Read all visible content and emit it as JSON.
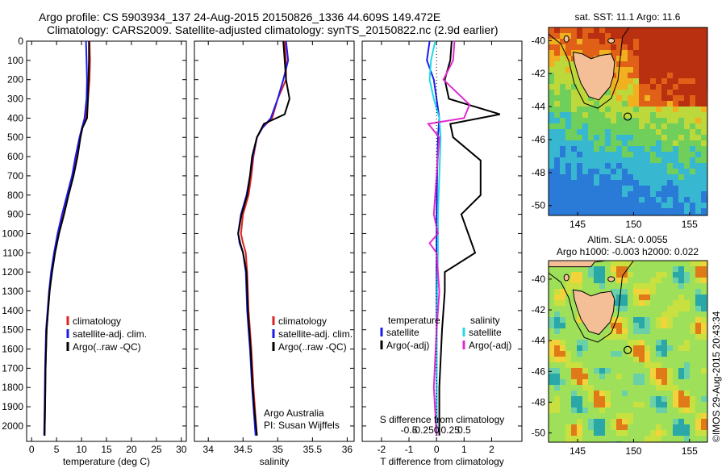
{
  "header": {
    "line1": "Argo profile: CS 5903934_137 24-Aug-2015 20150826_1336 44.609S 149.472E",
    "line2": "Climatology: CARS2009. Satellite-adjusted climatology: synTS_20150822.nc (2.9d earlier)"
  },
  "colors": {
    "climatology": "#dd2222",
    "satellite_adj": "#1a1aee",
    "argo": "#000000",
    "cyan": "#22d8e8",
    "magenta": "#e02ad0"
  },
  "chart_data": [
    {
      "type": "line",
      "name": "temperature",
      "xlabel": "temperature (deg C)",
      "xlim": [
        -1,
        31
      ],
      "xticks": [
        0,
        5,
        10,
        15,
        20,
        25,
        30
      ],
      "ylim": [
        0,
        2080
      ],
      "yticks": [
        0,
        100,
        200,
        300,
        400,
        500,
        600,
        700,
        800,
        900,
        1000,
        1100,
        1200,
        1300,
        1400,
        1500,
        1600,
        1700,
        1800,
        1900,
        2000
      ],
      "legend": [
        "climatology",
        "satellite-adj. clim.",
        "Argo(..raw -QC)"
      ],
      "series": [
        {
          "name": "climatology",
          "color": "#dd2222",
          "x": [
            11.6,
            11.7,
            11.6,
            11.3,
            10.8,
            10.1,
            9.6,
            8.9,
            8.2,
            7.2,
            6.2,
            5.3,
            4.6,
            4.0,
            3.6,
            3.3,
            3.0,
            2.8,
            2.7,
            2.6
          ],
          "y": [
            0,
            100,
            200,
            300,
            400,
            450,
            500,
            600,
            700,
            800,
            900,
            1000,
            1100,
            1200,
            1300,
            1400,
            1500,
            1700,
            1900,
            2050
          ]
        },
        {
          "name": "satellite-adj. clim.",
          "color": "#1a1aee",
          "x": [
            10.9,
            11.0,
            11.1,
            11.0,
            10.6,
            10.1,
            9.6,
            8.8,
            8.1,
            7.1,
            6.1,
            5.2,
            4.5,
            3.9,
            3.5,
            3.2,
            2.9,
            2.7,
            2.6,
            2.5
          ],
          "y": [
            0,
            100,
            200,
            300,
            400,
            450,
            500,
            600,
            700,
            800,
            900,
            1000,
            1100,
            1200,
            1300,
            1400,
            1500,
            1700,
            1900,
            2050
          ]
        },
        {
          "name": "Argo(..raw -QC)",
          "color": "#000000",
          "x": [
            11.5,
            11.5,
            11.4,
            11.3,
            11.1,
            10.2,
            9.8,
            9.2,
            8.4,
            7.4,
            6.5,
            5.5,
            4.7,
            4.1,
            3.6,
            3.3,
            3.0,
            2.8,
            2.7,
            2.6
          ],
          "y": [
            0,
            100,
            200,
            300,
            400,
            450,
            500,
            600,
            700,
            800,
            900,
            1000,
            1100,
            1200,
            1300,
            1400,
            1500,
            1700,
            1900,
            2050
          ]
        }
      ]
    },
    {
      "type": "line",
      "name": "salinity",
      "xlabel": "salinity",
      "xlim": [
        33.8,
        36.1
      ],
      "xticks": [
        34,
        34.5,
        35,
        35.5,
        36
      ],
      "ylim": [
        0,
        2080
      ],
      "legend": [
        "climatology",
        "satellite-adj. clim.",
        "Argo(..raw -QC)"
      ],
      "annotation": [
        "Argo Australia",
        "PI: Susan Wijffels"
      ],
      "series": [
        {
          "name": "climatology",
          "color": "#dd2222",
          "x": [
            35.1,
            35.12,
            35.12,
            35.0,
            34.92,
            34.78,
            34.7,
            34.65,
            34.62,
            34.58,
            34.5,
            34.47,
            34.5,
            34.54,
            34.56,
            34.58,
            34.6,
            34.62,
            34.65,
            34.67,
            34.7
          ],
          "y": [
            0,
            100,
            200,
            300,
            400,
            450,
            500,
            600,
            700,
            800,
            900,
            1000,
            1050,
            1100,
            1200,
            1400,
            1500,
            1600,
            1800,
            1900,
            2050
          ]
        },
        {
          "name": "satellite-adj. clim.",
          "color": "#1a1aee",
          "x": [
            35.12,
            35.15,
            35.08,
            35.0,
            34.9,
            34.78,
            34.7,
            34.64,
            34.6,
            34.55,
            34.47,
            34.43,
            34.45,
            34.5,
            34.54,
            34.56,
            34.58,
            34.6,
            34.63,
            34.65,
            34.68
          ],
          "y": [
            0,
            100,
            200,
            300,
            400,
            450,
            500,
            600,
            700,
            800,
            900,
            1000,
            1050,
            1100,
            1200,
            1400,
            1500,
            1600,
            1800,
            1900,
            2050
          ]
        },
        {
          "name": "Argo(..raw -QC)",
          "color": "#000000",
          "x": [
            35.08,
            35.1,
            35.12,
            35.17,
            35.1,
            34.8,
            34.7,
            34.63,
            34.6,
            34.56,
            34.48,
            34.43,
            34.46,
            34.5,
            34.55,
            34.57,
            34.59,
            34.61,
            34.64,
            34.66,
            34.7
          ],
          "y": [
            0,
            100,
            200,
            300,
            380,
            430,
            500,
            600,
            700,
            800,
            900,
            1000,
            1050,
            1100,
            1200,
            1400,
            1500,
            1600,
            1800,
            1900,
            2050
          ]
        }
      ]
    },
    {
      "type": "line",
      "name": "differences",
      "xlabel": "T difference from climatology",
      "xlabel_top": "S difference from climatology",
      "xlim": [
        -2.7,
        3.1
      ],
      "xticks": [
        -2,
        -1,
        0,
        1,
        2
      ],
      "sticks": [
        "-0.5",
        "-0.25",
        "0",
        "0.25",
        "0.5"
      ],
      "legend_left_title": "temperature",
      "legend_right_title": "salinity",
      "legend_left": [
        "satellite",
        "Argo(-adj)"
      ],
      "legend_right": [
        "satellite",
        "Argo(-adj)"
      ],
      "series": [
        {
          "name": "satellite",
          "group": "temperature",
          "color": "#1a1aee",
          "x": [
            -0.25,
            -0.35,
            -0.1,
            0.0,
            0.1,
            0.05,
            0.02,
            0.0,
            0.0,
            0.0,
            0.0,
            0.0,
            0.0
          ],
          "y": [
            0,
            100,
            200,
            300,
            400,
            500,
            700,
            900,
            1100,
            1300,
            1500,
            1700,
            2050
          ]
        },
        {
          "name": "Argo(-adj)",
          "group": "temperature",
          "color": "#000000",
          "x": [
            0.55,
            0.5,
            0.3,
            0.45,
            2.3,
            0.5,
            0.6,
            1.6,
            1.6,
            0.9,
            1.4,
            0.3,
            0.3,
            0.2,
            0.1,
            0.1
          ],
          "y": [
            0,
            100,
            200,
            300,
            380,
            430,
            500,
            620,
            800,
            900,
            1100,
            1200,
            1300,
            1500,
            1800,
            2050
          ]
        },
        {
          "name": "satellite",
          "group": "salinity",
          "color": "#22d8e8",
          "x": [
            -0.05,
            -0.2,
            -0.25,
            -0.1,
            0.1,
            0.15,
            0.1,
            0.05,
            0.05,
            0.02,
            0.0,
            0.0
          ],
          "y": [
            0,
            100,
            200,
            300,
            400,
            500,
            700,
            900,
            1100,
            1300,
            1700,
            2050
          ]
        },
        {
          "name": "Argo(-adj)",
          "group": "salinity",
          "color": "#e02ad0",
          "x": [
            0.65,
            0.6,
            0.25,
            1.2,
            1.0,
            -0.3,
            0.1,
            0.0,
            -0.1,
            0.05,
            -0.25,
            0.0,
            0.1,
            0.0,
            -0.1,
            0.0
          ],
          "y": [
            0,
            100,
            200,
            330,
            400,
            430,
            500,
            700,
            900,
            1000,
            1050,
            1100,
            1300,
            1500,
            1800,
            2050
          ]
        }
      ]
    },
    {
      "type": "heatmap",
      "name": "sst-map",
      "title": "sat. SST: 11.1  Argo: 11.6",
      "xticks": [
        145,
        150,
        155
      ],
      "yticks": [
        -40,
        -42,
        -44,
        -46,
        -48,
        -50
      ],
      "argo_location": [
        149.472,
        -44.609
      ]
    },
    {
      "type": "heatmap",
      "name": "sla-map",
      "title_line1": "Altim. SLA: 0.0055",
      "title_line2": "Argo h1000: -0.003 h2000: 0.022",
      "xticks": [
        145,
        150,
        155
      ],
      "yticks": [
        -40,
        -42,
        -44,
        -46,
        -48,
        -50
      ],
      "argo_location": [
        149.472,
        -44.609
      ]
    }
  ],
  "side_label": "©IMOS 29-Aug-2015 20:43:34"
}
